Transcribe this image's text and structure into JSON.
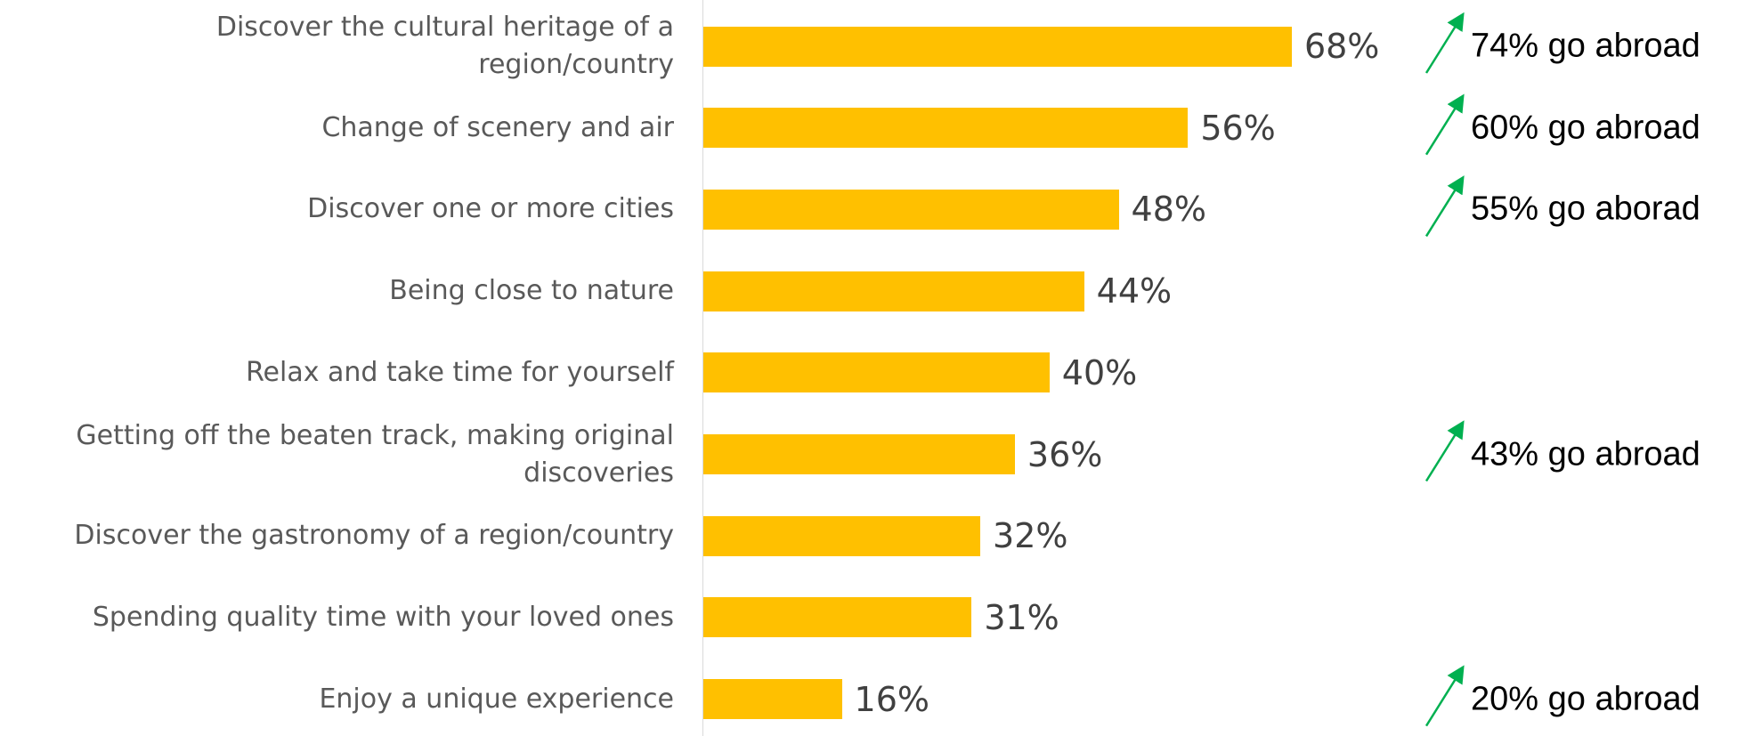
{
  "chart_data": {
    "type": "bar",
    "orientation": "horizontal",
    "categories": [
      "Discover the cultural heritage of a\nregion/country",
      "Change of scenery and air",
      "Discover one or more cities",
      "Being close to nature",
      "Relax and take time for yourself",
      "Getting off the beaten track, making original\ndiscoveries",
      "Discover the gastronomy of a region/country",
      "Spending quality time with your loved ones",
      "Enjoy a unique experience"
    ],
    "values": [
      68,
      56,
      48,
      44,
      40,
      36,
      32,
      31,
      16
    ],
    "value_labels": [
      "68%",
      "56%",
      "48%",
      "44%",
      "40%",
      "36%",
      "32%",
      "31%",
      "16%"
    ],
    "color": "#FFC000",
    "annotations": [
      "74% go abroad",
      "60% go abroad",
      "55% go aborad",
      null,
      null,
      "43% go abroad",
      null,
      null,
      "20% go abroad"
    ],
    "annotation_color": "#00B050"
  }
}
